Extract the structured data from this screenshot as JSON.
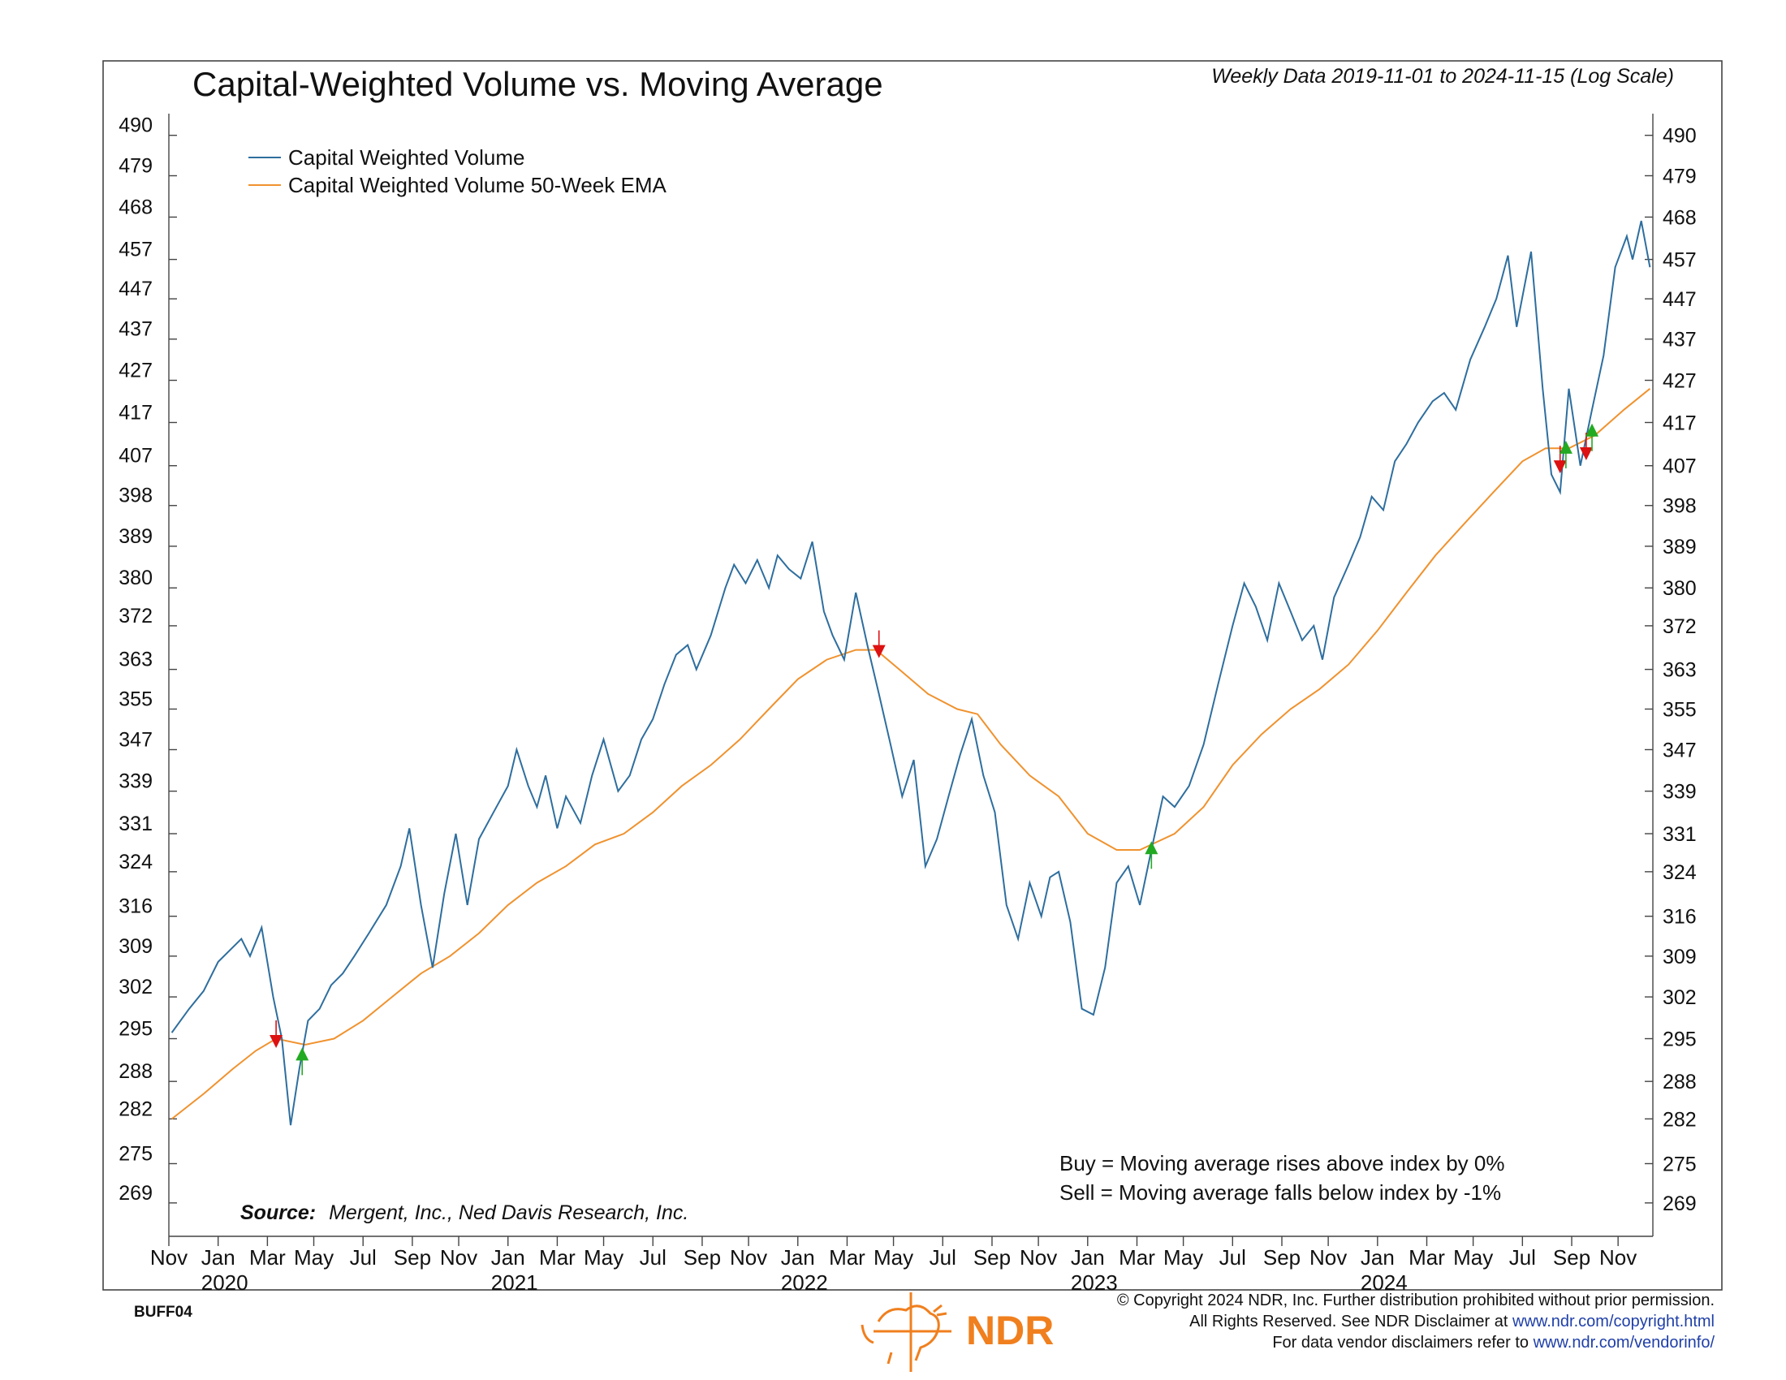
{
  "header": {
    "title": "Capital-Weighted Volume vs. Moving Average",
    "subtitle": "Weekly Data 2019-11-01 to 2024-11-15 (Log Scale)"
  },
  "legend": {
    "items": [
      {
        "label": "Capital Weighted Volume",
        "color": "#2e6e9e"
      },
      {
        "label": "Capital Weighted Volume 50-Week EMA",
        "color": "#f0922e"
      }
    ]
  },
  "notes": {
    "buy": "Buy = Moving average rises above index by 0%",
    "sell": "Sell = Moving average falls below index by -1%"
  },
  "source": {
    "label": "Source:",
    "text": "Mergent, Inc., Ned Davis Research, Inc."
  },
  "footer": {
    "code": "BUFF04",
    "brand": "NDR",
    "line1": "© Copyright 2024 NDR, Inc. Further distribution prohibited without prior permission.",
    "line2_prefix": "All Rights Reserved. See NDR Disclaimer at ",
    "line2_link": "www.ndr.com/copyright.html",
    "line3_prefix": "For data vendor disclaimers refer to ",
    "line3_link": "www.ndr.com/vendorinfo/"
  },
  "colors": {
    "volume": "#2e6e9e",
    "ema": "#f0922e",
    "buy_arrow": "#22aa22",
    "sell_arrow": "#dd1111",
    "brand": "#f07f1e"
  },
  "chart_data": {
    "type": "line",
    "scale": "log",
    "ylim": [
      264,
      496
    ],
    "yticks": [
      269,
      275,
      282,
      288,
      295,
      302,
      309,
      316,
      324,
      331,
      339,
      347,
      355,
      363,
      372,
      380,
      389,
      398,
      407,
      417,
      427,
      437,
      447,
      457,
      468,
      479,
      490
    ],
    "xlim": [
      2019.83,
      2024.95
    ],
    "xticks": [
      {
        "x": 2019.83,
        "label": "Nov"
      },
      {
        "x": 2020.0,
        "label": "Jan"
      },
      {
        "x": 2020.17,
        "label": "Mar"
      },
      {
        "x": 2020.33,
        "label": "May"
      },
      {
        "x": 2020.5,
        "label": "Jul"
      },
      {
        "x": 2020.67,
        "label": "Sep"
      },
      {
        "x": 2020.83,
        "label": "Nov"
      },
      {
        "x": 2021.0,
        "label": "Jan"
      },
      {
        "x": 2021.17,
        "label": "Mar"
      },
      {
        "x": 2021.33,
        "label": "May"
      },
      {
        "x": 2021.5,
        "label": "Jul"
      },
      {
        "x": 2021.67,
        "label": "Sep"
      },
      {
        "x": 2021.83,
        "label": "Nov"
      },
      {
        "x": 2022.0,
        "label": "Jan"
      },
      {
        "x": 2022.17,
        "label": "Mar"
      },
      {
        "x": 2022.33,
        "label": "May"
      },
      {
        "x": 2022.5,
        "label": "Jul"
      },
      {
        "x": 2022.67,
        "label": "Sep"
      },
      {
        "x": 2022.83,
        "label": "Nov"
      },
      {
        "x": 2023.0,
        "label": "Jan"
      },
      {
        "x": 2023.17,
        "label": "Mar"
      },
      {
        "x": 2023.33,
        "label": "May"
      },
      {
        "x": 2023.5,
        "label": "Jul"
      },
      {
        "x": 2023.67,
        "label": "Sep"
      },
      {
        "x": 2023.83,
        "label": "Nov"
      },
      {
        "x": 2024.0,
        "label": "Jan"
      },
      {
        "x": 2024.17,
        "label": "Mar"
      },
      {
        "x": 2024.33,
        "label": "May"
      },
      {
        "x": 2024.5,
        "label": "Jul"
      },
      {
        "x": 2024.67,
        "label": "Sep"
      },
      {
        "x": 2024.83,
        "label": "Nov"
      }
    ],
    "year_labels": [
      {
        "x": 2020.0,
        "label": "2020"
      },
      {
        "x": 2021.0,
        "label": "2021"
      },
      {
        "x": 2022.0,
        "label": "2022"
      },
      {
        "x": 2023.0,
        "label": "2023"
      },
      {
        "x": 2024.0,
        "label": "2024"
      }
    ],
    "series": [
      {
        "name": "Capital Weighted Volume",
        "points": [
          [
            2019.84,
            296
          ],
          [
            2019.9,
            300
          ],
          [
            2019.95,
            303
          ],
          [
            2020.0,
            308
          ],
          [
            2020.04,
            310
          ],
          [
            2020.08,
            312
          ],
          [
            2020.11,
            309
          ],
          [
            2020.15,
            314
          ],
          [
            2020.19,
            302
          ],
          [
            2020.22,
            295
          ],
          [
            2020.25,
            281
          ],
          [
            2020.28,
            290
          ],
          [
            2020.31,
            298
          ],
          [
            2020.35,
            300
          ],
          [
            2020.39,
            304
          ],
          [
            2020.43,
            306
          ],
          [
            2020.47,
            309
          ],
          [
            2020.52,
            313
          ],
          [
            2020.58,
            318
          ],
          [
            2020.63,
            325
          ],
          [
            2020.66,
            332
          ],
          [
            2020.7,
            318
          ],
          [
            2020.74,
            307
          ],
          [
            2020.78,
            320
          ],
          [
            2020.82,
            331
          ],
          [
            2020.86,
            318
          ],
          [
            2020.9,
            330
          ],
          [
            2020.95,
            335
          ],
          [
            2021.0,
            340
          ],
          [
            2021.03,
            347
          ],
          [
            2021.07,
            340
          ],
          [
            2021.1,
            336
          ],
          [
            2021.13,
            342
          ],
          [
            2021.17,
            332
          ],
          [
            2021.2,
            338
          ],
          [
            2021.25,
            333
          ],
          [
            2021.29,
            342
          ],
          [
            2021.33,
            349
          ],
          [
            2021.38,
            339
          ],
          [
            2021.42,
            342
          ],
          [
            2021.46,
            349
          ],
          [
            2021.5,
            353
          ],
          [
            2021.54,
            360
          ],
          [
            2021.58,
            366
          ],
          [
            2021.62,
            368
          ],
          [
            2021.65,
            363
          ],
          [
            2021.7,
            370
          ],
          [
            2021.75,
            380
          ],
          [
            2021.78,
            385
          ],
          [
            2021.82,
            381
          ],
          [
            2021.86,
            386
          ],
          [
            2021.9,
            380
          ],
          [
            2021.93,
            387
          ],
          [
            2021.97,
            384
          ],
          [
            2022.01,
            382
          ],
          [
            2022.05,
            390
          ],
          [
            2022.09,
            375
          ],
          [
            2022.12,
            370
          ],
          [
            2022.16,
            365
          ],
          [
            2022.2,
            379
          ],
          [
            2022.24,
            368
          ],
          [
            2022.28,
            358
          ],
          [
            2022.32,
            348
          ],
          [
            2022.36,
            338
          ],
          [
            2022.4,
            345
          ],
          [
            2022.44,
            325
          ],
          [
            2022.48,
            330
          ],
          [
            2022.52,
            338
          ],
          [
            2022.56,
            346
          ],
          [
            2022.6,
            353
          ],
          [
            2022.64,
            342
          ],
          [
            2022.68,
            335
          ],
          [
            2022.72,
            318
          ],
          [
            2022.76,
            312
          ],
          [
            2022.8,
            322
          ],
          [
            2022.84,
            316
          ],
          [
            2022.87,
            323
          ],
          [
            2022.9,
            324
          ],
          [
            2022.94,
            315
          ],
          [
            2022.98,
            300
          ],
          [
            2023.02,
            299
          ],
          [
            2023.06,
            307
          ],
          [
            2023.1,
            322
          ],
          [
            2023.14,
            325
          ],
          [
            2023.18,
            318
          ],
          [
            2023.22,
            328
          ],
          [
            2023.26,
            338
          ],
          [
            2023.3,
            336
          ],
          [
            2023.35,
            340
          ],
          [
            2023.4,
            348
          ],
          [
            2023.45,
            360
          ],
          [
            2023.5,
            372
          ],
          [
            2023.54,
            381
          ],
          [
            2023.58,
            376
          ],
          [
            2023.62,
            369
          ],
          [
            2023.66,
            381
          ],
          [
            2023.7,
            375
          ],
          [
            2023.74,
            369
          ],
          [
            2023.78,
            372
          ],
          [
            2023.81,
            365
          ],
          [
            2023.85,
            378
          ],
          [
            2023.9,
            385
          ],
          [
            2023.94,
            391
          ],
          [
            2023.98,
            400
          ],
          [
            2024.02,
            397
          ],
          [
            2024.06,
            408
          ],
          [
            2024.1,
            412
          ],
          [
            2024.14,
            417
          ],
          [
            2024.19,
            422
          ],
          [
            2024.23,
            424
          ],
          [
            2024.27,
            420
          ],
          [
            2024.32,
            432
          ],
          [
            2024.37,
            440
          ],
          [
            2024.41,
            447
          ],
          [
            2024.45,
            458
          ],
          [
            2024.48,
            440
          ],
          [
            2024.53,
            459
          ],
          [
            2024.57,
            425
          ],
          [
            2024.6,
            405
          ],
          [
            2024.63,
            401
          ],
          [
            2024.66,
            425
          ],
          [
            2024.7,
            407
          ],
          [
            2024.74,
            420
          ],
          [
            2024.78,
            433
          ],
          [
            2024.82,
            455
          ],
          [
            2024.86,
            463
          ],
          [
            2024.88,
            457
          ],
          [
            2024.91,
            467
          ],
          [
            2024.94,
            455
          ]
        ]
      },
      {
        "name": "Capital Weighted Volume 50-Week EMA",
        "points": [
          [
            2019.84,
            282
          ],
          [
            2019.95,
            286
          ],
          [
            2020.05,
            290
          ],
          [
            2020.13,
            293
          ],
          [
            2020.2,
            295
          ],
          [
            2020.3,
            294
          ],
          [
            2020.4,
            295
          ],
          [
            2020.5,
            298
          ],
          [
            2020.6,
            302
          ],
          [
            2020.7,
            306
          ],
          [
            2020.8,
            309
          ],
          [
            2020.9,
            313
          ],
          [
            2021.0,
            318
          ],
          [
            2021.1,
            322
          ],
          [
            2021.2,
            325
          ],
          [
            2021.3,
            329
          ],
          [
            2021.4,
            331
          ],
          [
            2021.5,
            335
          ],
          [
            2021.6,
            340
          ],
          [
            2021.7,
            344
          ],
          [
            2021.8,
            349
          ],
          [
            2021.9,
            355
          ],
          [
            2022.0,
            361
          ],
          [
            2022.1,
            365
          ],
          [
            2022.2,
            367
          ],
          [
            2022.27,
            367
          ],
          [
            2022.35,
            363
          ],
          [
            2022.45,
            358
          ],
          [
            2022.55,
            355
          ],
          [
            2022.62,
            354
          ],
          [
            2022.7,
            348
          ],
          [
            2022.8,
            342
          ],
          [
            2022.9,
            338
          ],
          [
            2023.0,
            331
          ],
          [
            2023.1,
            328
          ],
          [
            2023.18,
            328
          ],
          [
            2023.3,
            331
          ],
          [
            2023.4,
            336
          ],
          [
            2023.5,
            344
          ],
          [
            2023.6,
            350
          ],
          [
            2023.7,
            355
          ],
          [
            2023.8,
            359
          ],
          [
            2023.9,
            364
          ],
          [
            2024.0,
            371
          ],
          [
            2024.1,
            379
          ],
          [
            2024.2,
            387
          ],
          [
            2024.3,
            394
          ],
          [
            2024.4,
            401
          ],
          [
            2024.5,
            408
          ],
          [
            2024.58,
            411
          ],
          [
            2024.66,
            411
          ],
          [
            2024.75,
            414
          ],
          [
            2024.85,
            420
          ],
          [
            2024.94,
            425
          ]
        ]
      }
    ],
    "signals": [
      {
        "type": "sell",
        "x": 2020.2,
        "y": 294
      },
      {
        "type": "buy",
        "x": 2020.29,
        "y": 293
      },
      {
        "type": "sell",
        "x": 2022.28,
        "y": 366
      },
      {
        "type": "buy",
        "x": 2023.22,
        "y": 329
      },
      {
        "type": "sell",
        "x": 2024.63,
        "y": 406
      },
      {
        "type": "buy",
        "x": 2024.65,
        "y": 412
      },
      {
        "type": "sell",
        "x": 2024.72,
        "y": 409
      },
      {
        "type": "buy",
        "x": 2024.74,
        "y": 416
      }
    ]
  }
}
